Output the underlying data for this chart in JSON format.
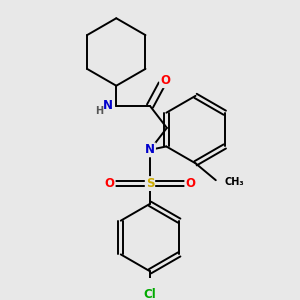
{
  "background_color": "#e8e8e8",
  "figure_size": [
    3.0,
    3.0
  ],
  "dpi": 100,
  "atom_colors": {
    "N": "#0000cc",
    "O": "#ff0000",
    "S": "#ccaa00",
    "Cl": "#00aa00",
    "C": "#000000",
    "H": "#555555"
  },
  "bond_color": "#000000",
  "bond_width": 1.4,
  "font_size_atoms": 8.5,
  "font_size_small": 7.0
}
